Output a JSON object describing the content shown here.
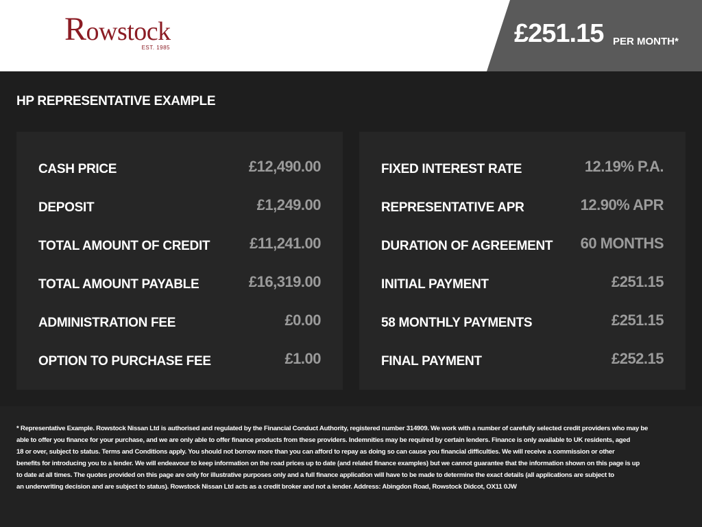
{
  "header": {
    "logo_text": "Rowstock",
    "logo_est": "EST. 1985",
    "price": "£251.15",
    "price_suffix": "PER MONTH*",
    "accent": "#8b1c24"
  },
  "title": "HP REPRESENTATIVE EXAMPLE",
  "left": [
    {
      "label": "CASH PRICE",
      "value": "£12,490.00"
    },
    {
      "label": "DEPOSIT",
      "value": "£1,249.00"
    },
    {
      "label": "TOTAL AMOUNT OF CREDIT",
      "value": "£11,241.00"
    },
    {
      "label": "TOTAL AMOUNT PAYABLE",
      "value": "£16,319.00"
    },
    {
      "label": "ADMINISTRATION FEE",
      "value": "£0.00"
    },
    {
      "label": "OPTION TO PURCHASE FEE",
      "value": "£1.00"
    }
  ],
  "right": [
    {
      "label": "FIXED INTEREST RATE",
      "value": "12.19% P.A."
    },
    {
      "label": "REPRESENTATIVE APR",
      "value": "12.90% APR"
    },
    {
      "label": "DURATION OF AGREEMENT",
      "value": "60 MONTHS"
    },
    {
      "label": "INITIAL PAYMENT",
      "value": "£251.15"
    },
    {
      "label": "58 MONTHLY PAYMENTS",
      "value": "£251.15"
    },
    {
      "label": "FINAL PAYMENT",
      "value": "£252.15"
    }
  ],
  "disclaimer": [
    "* Representative Example. Rowstock Nissan Ltd is authorised and regulated by the Financial Conduct Authority, registered number 314909. We work with a number of carefully selected credit providers who may be",
    "able to offer you finance for your purchase, and we are only able to offer finance products from these providers. Indemnities may be required by certain lenders. Finance is only available to UK residents, aged",
    "18 or over, subject to status. Terms and Conditions apply. You should not borrow more than you can afford to repay as doing so can cause you financial difficulties. We will receive a commission or other",
    "benefits for introducing you to a lender. We will endeavour to keep information on the road prices up to date (and related finance examples) but we cannot guarantee that the information shown on this page is up",
    "to date at all times. The quotes provided on this page are only for illustrative purposes only and a full finance application will have to be made to determine the exact details (all applications are subject to",
    "an underwriting decision and are subject to status). Rowstock Nissan Ltd acts as a credit broker and not a lender. Address: Abingdon Road, Rowstock Didcot, OX11 0JW"
  ]
}
